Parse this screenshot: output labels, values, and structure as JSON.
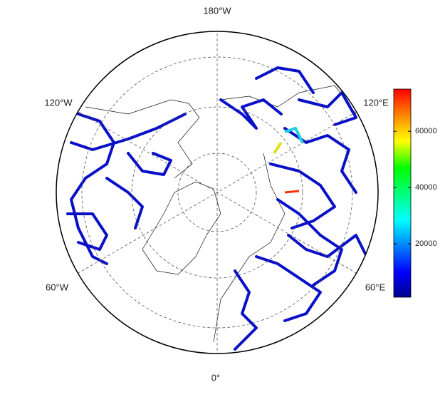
{
  "map": {
    "labels": {
      "top": "180°W",
      "upper_left": "120°W",
      "upper_right": "120°E",
      "lower_left": "60°W",
      "lower_right": "60°E",
      "bottom": "0°"
    }
  },
  "colorbar": {
    "range": [
      1000,
      75000
    ],
    "ticks": [
      20000,
      40000,
      60000
    ]
  }
}
